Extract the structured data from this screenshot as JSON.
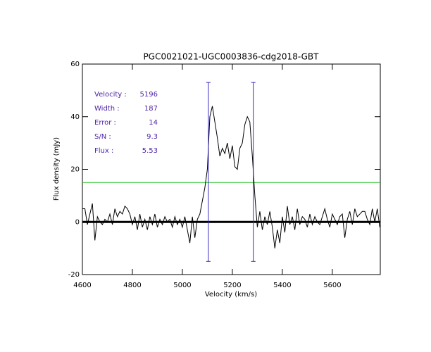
{
  "chart_data": {
    "type": "line",
    "title": "PGC0021021-UGC0003836-cdg2018-GBT",
    "x_label": "Velocity (km/s)",
    "y_label": "Flux density (mJy)",
    "xlim": [
      4600,
      5792
    ],
    "ylim": [
      -20,
      60
    ],
    "xticks": [
      4600,
      4800,
      5000,
      5200,
      5400,
      5600
    ],
    "yticks": [
      -20,
      0,
      20,
      40,
      60
    ],
    "color": "#000000",
    "x": [
      4600,
      4610,
      4620,
      4630,
      4640,
      4650,
      4660,
      4670,
      4680,
      4690,
      4700,
      4710,
      4720,
      4730,
      4740,
      4750,
      4760,
      4770,
      4780,
      4790,
      4800,
      4810,
      4820,
      4830,
      4840,
      4850,
      4860,
      4870,
      4880,
      4890,
      4900,
      4910,
      4920,
      4930,
      4940,
      4950,
      4960,
      4970,
      4980,
      4990,
      5000,
      5010,
      5020,
      5030,
      5040,
      5050,
      5060,
      5070,
      5080,
      5090,
      5100,
      5110,
      5120,
      5130,
      5140,
      5150,
      5160,
      5170,
      5180,
      5190,
      5200,
      5210,
      5220,
      5230,
      5240,
      5250,
      5260,
      5270,
      5280,
      5290,
      5300,
      5310,
      5320,
      5330,
      5340,
      5350,
      5360,
      5370,
      5380,
      5390,
      5400,
      5410,
      5420,
      5430,
      5440,
      5450,
      5460,
      5470,
      5480,
      5490,
      5500,
      5510,
      5520,
      5530,
      5540,
      5550,
      5560,
      5570,
      5580,
      5590,
      5600,
      5610,
      5620,
      5630,
      5640,
      5650,
      5660,
      5670,
      5680,
      5690,
      5700,
      5710,
      5720,
      5730,
      5740,
      5750,
      5760,
      5770,
      5780,
      5790
    ],
    "values": [
      5,
      5,
      -1,
      3,
      7,
      -7,
      2,
      0,
      -1,
      1,
      0,
      3,
      -1,
      5,
      2,
      4,
      3,
      6,
      5,
      3,
      -1,
      2,
      -3,
      3,
      -2,
      1,
      -3,
      2,
      -1,
      3,
      -2,
      1,
      -1,
      2,
      0,
      1,
      -2,
      2,
      -1,
      1,
      -2,
      2,
      -3,
      -8,
      2,
      -6,
      1,
      3,
      8,
      13,
      20,
      40,
      44,
      38,
      32,
      25,
      28,
      26,
      30,
      24,
      29,
      21,
      20,
      28,
      30,
      37,
      40,
      38,
      25,
      10,
      -2,
      4,
      -3,
      2,
      -1,
      4,
      -2,
      -10,
      -3,
      -8,
      2,
      -4,
      6,
      -1,
      2,
      -3,
      5,
      -1,
      2,
      1,
      -2,
      3,
      -1,
      2,
      0,
      -1,
      2,
      5,
      1,
      -2,
      3,
      1,
      -1,
      2,
      3,
      -6,
      1,
      4,
      -1,
      5,
      2,
      3,
      4,
      4,
      1,
      -1,
      5,
      0,
      5,
      -2
    ],
    "zero_line": true,
    "hlines": [
      {
        "y": 15,
        "color": "#22c022"
      }
    ],
    "vlines": [
      {
        "x": 5104
      },
      {
        "x": 5284
      }
    ],
    "vline_range": [
      -15,
      53
    ],
    "vline_color": "#3b2bbf",
    "stats_color": "#4b1fa8",
    "stats": [
      {
        "label": "Velocity :",
        "value": 5196
      },
      {
        "label": "Width :",
        "value": 187
      },
      {
        "label": "Error :",
        "value": 14
      },
      {
        "label": "S/N :",
        "value": 9.3
      },
      {
        "label": "Flux :",
        "value": 5.53
      }
    ]
  }
}
